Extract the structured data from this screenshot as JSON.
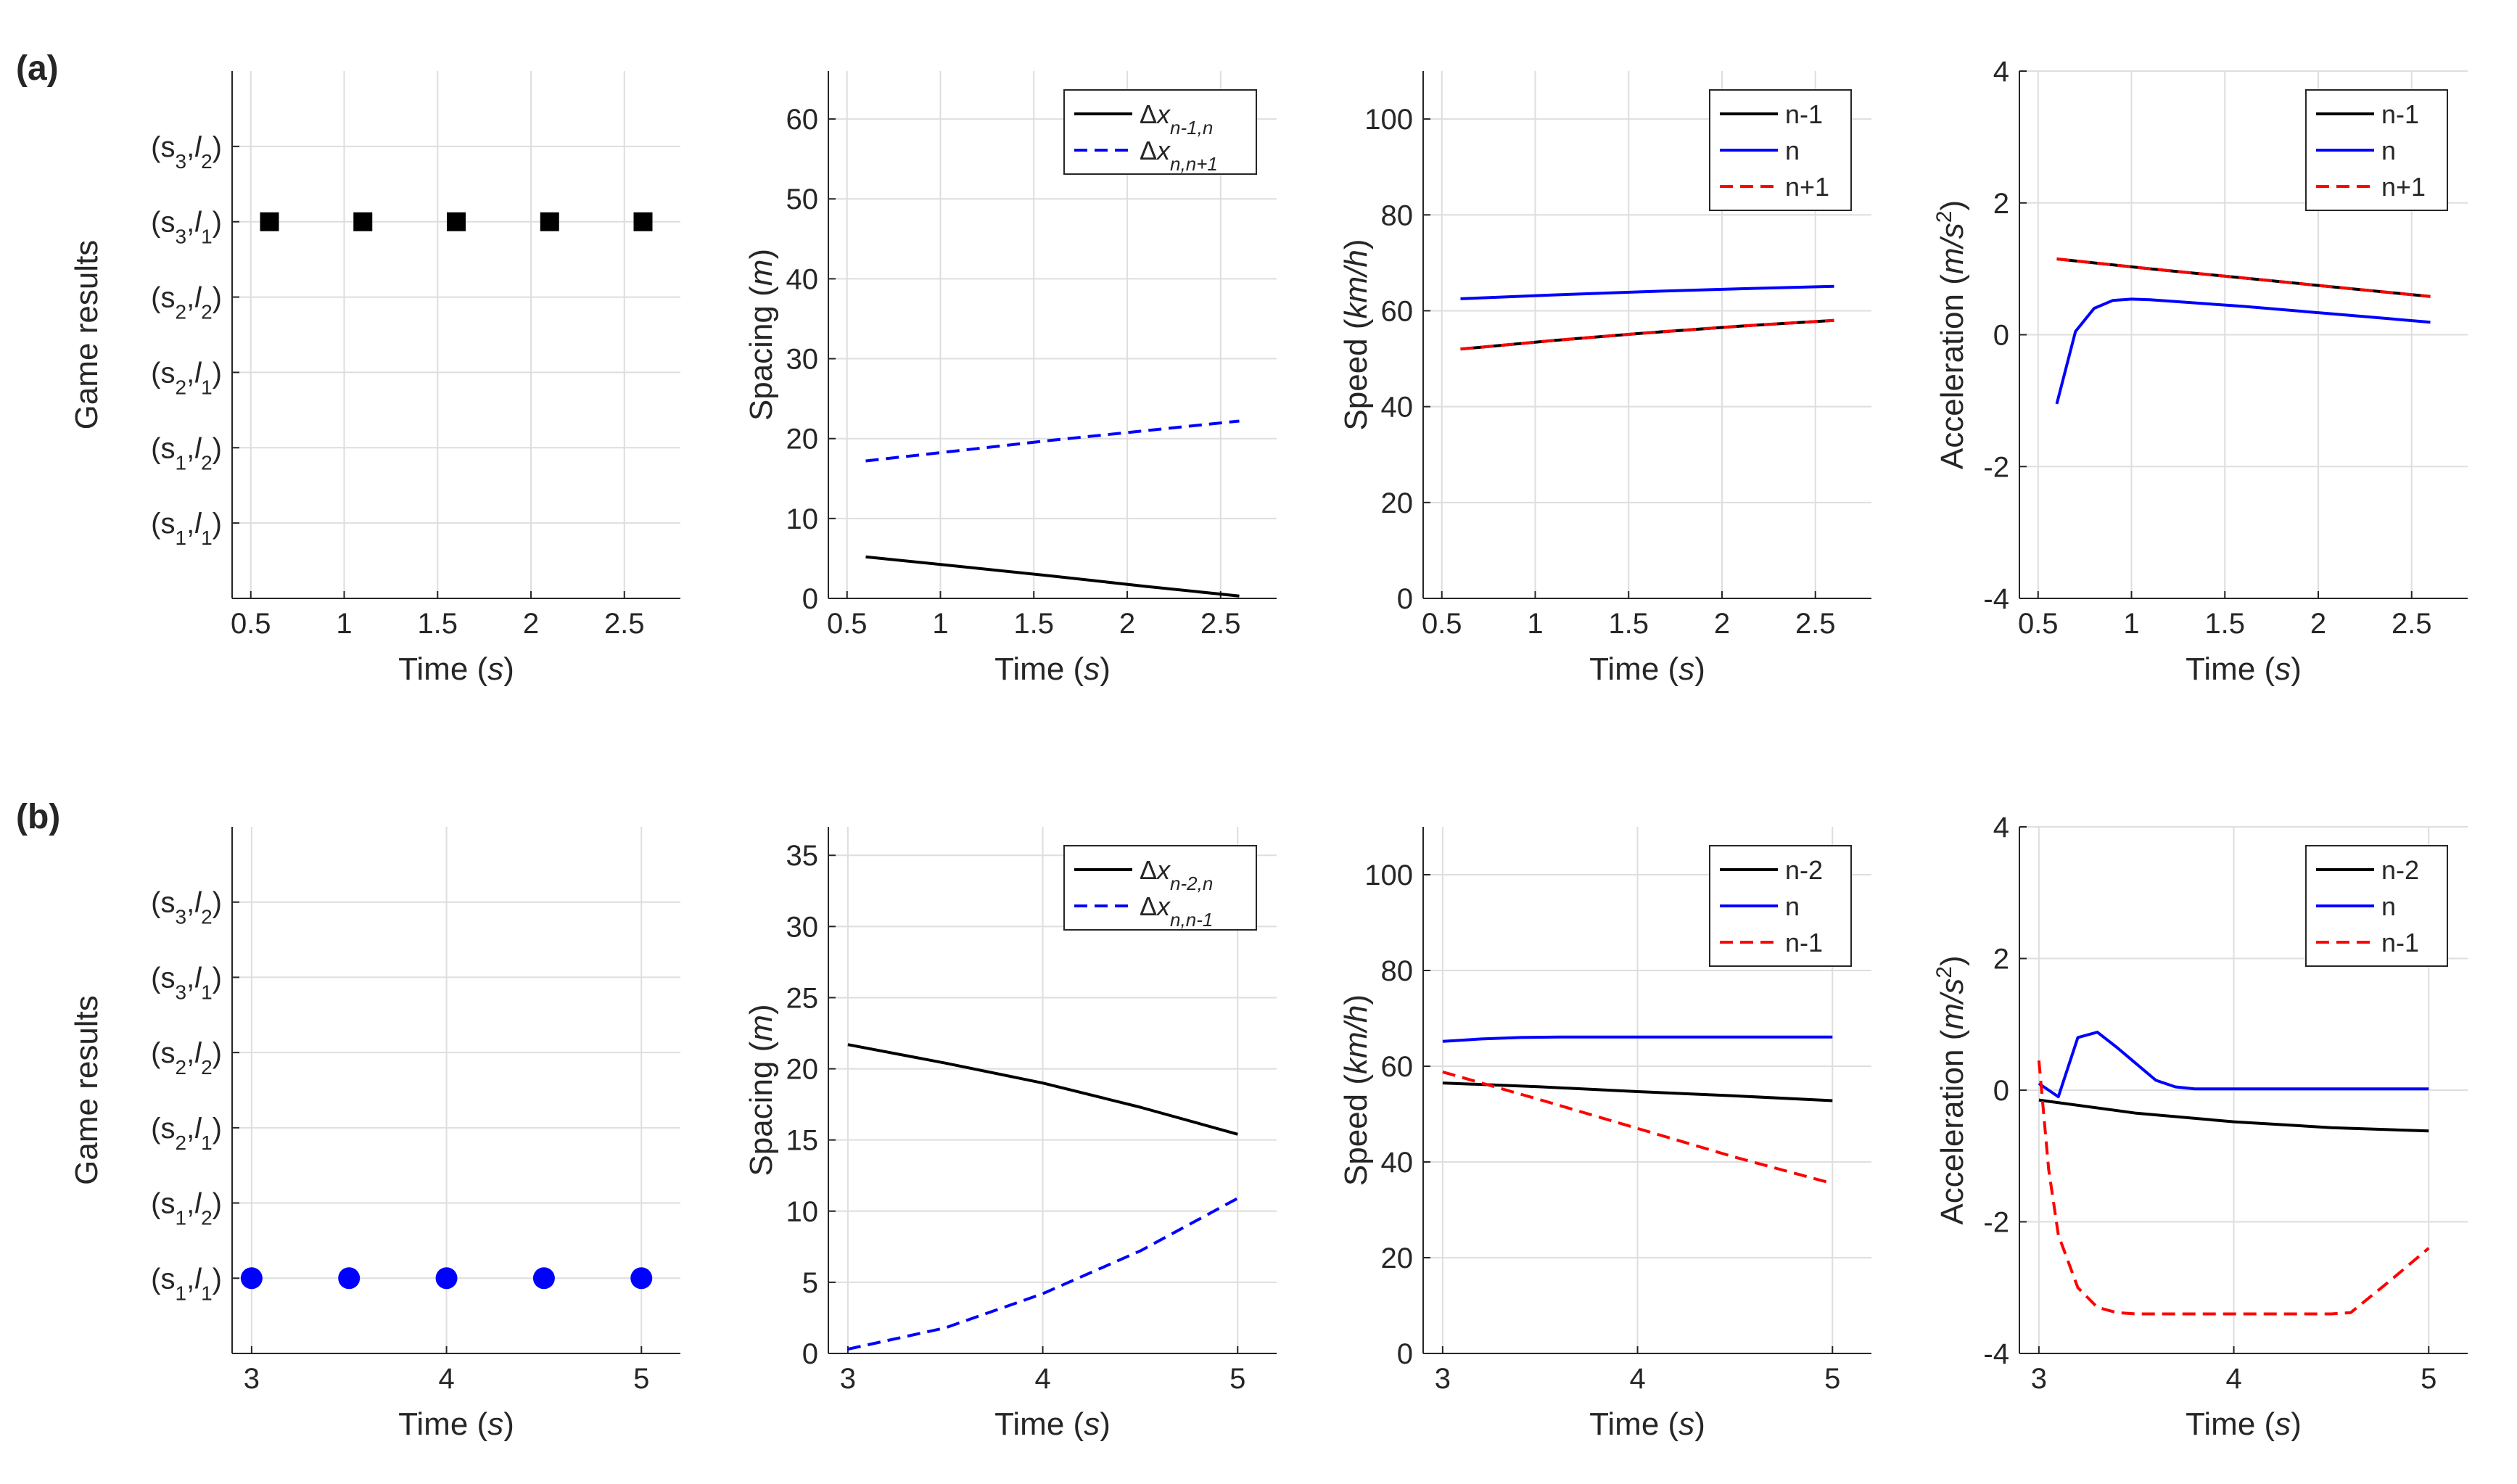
{
  "chart_data": [
    {
      "row": "(a)",
      "type": "scatter",
      "title": "",
      "xlabel": "Time",
      "xunit": "s",
      "ylabel": "Game results",
      "xlim": [
        0.4,
        2.8
      ],
      "xticks": [
        0.5,
        1,
        1.5,
        2,
        2.5
      ],
      "ylim": [
        0,
        7
      ],
      "ycategories": [
        {
          "s": "1",
          "l": "1"
        },
        {
          "s": "1",
          "l": "2"
        },
        {
          "s": "2",
          "l": "1"
        },
        {
          "s": "2",
          "l": "2"
        },
        {
          "s": "3",
          "l": "1"
        },
        {
          "s": "3",
          "l": "2"
        }
      ],
      "series": [
        {
          "name": "game result",
          "color": "#000000",
          "marker": "square",
          "x": [
            0.6,
            1.1,
            1.6,
            2.1,
            2.6
          ],
          "y": [
            5,
            5,
            5,
            5,
            5
          ]
        }
      ]
    },
    {
      "row": "(a)",
      "type": "line",
      "title": "",
      "xlabel": "Time",
      "xunit": "s",
      "ylabel": "Spacing",
      "yunit": "m",
      "xlim": [
        0.4,
        2.8
      ],
      "xticks": [
        0.5,
        1,
        1.5,
        2,
        2.5
      ],
      "ylim": [
        0,
        66
      ],
      "yticks": [
        0,
        10,
        20,
        30,
        40,
        50,
        60
      ],
      "legend_position": "top-right",
      "series": [
        {
          "name": "Δx",
          "sub": "n-1,n",
          "color": "#000000",
          "dash": "solid",
          "x": [
            0.6,
            1.1,
            1.6,
            2.1,
            2.6
          ],
          "y": [
            5.2,
            4.0,
            2.8,
            1.5,
            0.3
          ]
        },
        {
          "name": "Δx",
          "sub": "n,n+1",
          "color": "#0000ff",
          "dash": "dashed",
          "x": [
            0.6,
            1.1,
            1.6,
            2.1,
            2.6
          ],
          "y": [
            17.2,
            18.5,
            19.8,
            21.0,
            22.2
          ]
        }
      ]
    },
    {
      "row": "(a)",
      "type": "line",
      "title": "",
      "xlabel": "Time",
      "xunit": "s",
      "ylabel": "Speed",
      "yunit": "km/h",
      "xlim": [
        0.4,
        2.8
      ],
      "xticks": [
        0.5,
        1,
        1.5,
        2,
        2.5
      ],
      "ylim": [
        0,
        110
      ],
      "yticks": [
        0,
        20,
        40,
        60,
        80,
        100
      ],
      "legend_position": "top-right",
      "series": [
        {
          "name": "n-1",
          "color": "#000000",
          "dash": "solid",
          "x": [
            0.6,
            1.1,
            1.6,
            2.1,
            2.6
          ],
          "y": [
            52,
            53.8,
            55.4,
            56.8,
            58
          ]
        },
        {
          "name": "n",
          "color": "#0000ff",
          "dash": "solid",
          "x": [
            0.6,
            1.1,
            1.6,
            2.1,
            2.6
          ],
          "y": [
            62.5,
            63.3,
            64.0,
            64.6,
            65.1
          ]
        },
        {
          "name": "n+1",
          "color": "#ff0000",
          "dash": "dashed",
          "x": [
            0.6,
            1.1,
            1.6,
            2.1,
            2.6
          ],
          "y": [
            52,
            53.8,
            55.4,
            56.8,
            58
          ]
        }
      ]
    },
    {
      "row": "(a)",
      "type": "line",
      "title": "",
      "xlabel": "Time",
      "xunit": "s",
      "ylabel": "Acceleration",
      "yunit": "m/s",
      "xlim": [
        0.4,
        2.8
      ],
      "xticks": [
        0.5,
        1,
        1.5,
        2,
        2.5
      ],
      "ylim": [
        -4,
        4
      ],
      "yticks": [
        -4,
        -2,
        0,
        2,
        4
      ],
      "legend_position": "top-right",
      "series": [
        {
          "name": "n-1",
          "color": "#000000",
          "dash": "solid",
          "x": [
            0.6,
            1.1,
            1.6,
            2.1,
            2.6
          ],
          "y": [
            1.15,
            1.0,
            0.86,
            0.72,
            0.58
          ]
        },
        {
          "name": "n",
          "color": "#0000ff",
          "dash": "solid",
          "x": [
            0.6,
            0.7,
            0.8,
            0.9,
            1.0,
            1.1,
            1.6,
            2.1,
            2.6
          ],
          "y": [
            -1.05,
            0.05,
            0.4,
            0.52,
            0.54,
            0.53,
            0.43,
            0.31,
            0.19
          ]
        },
        {
          "name": "n+1",
          "color": "#ff0000",
          "dash": "dashed",
          "x": [
            0.6,
            1.1,
            1.6,
            2.1,
            2.6
          ],
          "y": [
            1.15,
            1.0,
            0.86,
            0.72,
            0.58
          ]
        }
      ]
    },
    {
      "row": "(b)",
      "type": "scatter",
      "title": "",
      "xlabel": "Time",
      "xunit": "s",
      "ylabel": "Game results",
      "xlim": [
        2.9,
        5.2
      ],
      "xticks": [
        3,
        4,
        5
      ],
      "ylim": [
        0,
        7
      ],
      "ycategories": [
        {
          "s": "1",
          "l": "1"
        },
        {
          "s": "1",
          "l": "2"
        },
        {
          "s": "2",
          "l": "1"
        },
        {
          "s": "2",
          "l": "2"
        },
        {
          "s": "3",
          "l": "1"
        },
        {
          "s": "3",
          "l": "2"
        }
      ],
      "series": [
        {
          "name": "game result",
          "color": "#0000ff",
          "marker": "circle",
          "x": [
            3,
            3.5,
            4,
            4.5,
            5
          ],
          "y": [
            1,
            1,
            1,
            1,
            1
          ]
        }
      ]
    },
    {
      "row": "(b)",
      "type": "line",
      "title": "",
      "xlabel": "Time",
      "xunit": "s",
      "ylabel": "Spacing",
      "yunit": "m",
      "xlim": [
        2.9,
        5.2
      ],
      "xticks": [
        3,
        4,
        5
      ],
      "ylim": [
        0,
        37
      ],
      "yticks": [
        0,
        5,
        10,
        15,
        20,
        25,
        30,
        35
      ],
      "legend_position": "top-right",
      "series": [
        {
          "name": "Δx",
          "sub": "n-2,n",
          "color": "#000000",
          "dash": "solid",
          "x": [
            3,
            3.5,
            4,
            4.5,
            5
          ],
          "y": [
            21.7,
            20.4,
            19.0,
            17.3,
            15.4
          ]
        },
        {
          "name": "Δx",
          "sub": "n,n-1",
          "color": "#0000ff",
          "dash": "dashed",
          "x": [
            3,
            3.5,
            4,
            4.5,
            5
          ],
          "y": [
            0.3,
            1.8,
            4.2,
            7.2,
            10.9
          ]
        }
      ]
    },
    {
      "row": "(b)",
      "type": "line",
      "title": "",
      "xlabel": "Time",
      "xunit": "s",
      "ylabel": "Speed",
      "yunit": "km/h",
      "xlim": [
        2.9,
        5.2
      ],
      "xticks": [
        3,
        4,
        5
      ],
      "ylim": [
        0,
        110
      ],
      "yticks": [
        0,
        20,
        40,
        60,
        80,
        100
      ],
      "legend_position": "top-right",
      "series": [
        {
          "name": "n-2",
          "color": "#000000",
          "dash": "solid",
          "x": [
            3,
            3.5,
            4,
            4.5,
            5
          ],
          "y": [
            56.5,
            55.7,
            54.7,
            53.8,
            52.8
          ]
        },
        {
          "name": "n",
          "color": "#0000ff",
          "dash": "solid",
          "x": [
            3,
            3.2,
            3.4,
            3.6,
            4,
            4.5,
            5
          ],
          "y": [
            65.2,
            65.7,
            66.0,
            66.1,
            66.1,
            66.1,
            66.1
          ]
        },
        {
          "name": "n-1",
          "color": "#ff0000",
          "dash": "dashed",
          "x": [
            3,
            3.5,
            4,
            4.5,
            5
          ],
          "y": [
            58.8,
            53.0,
            47.0,
            41.0,
            35.5
          ]
        }
      ]
    },
    {
      "row": "(b)",
      "type": "line",
      "title": "",
      "xlabel": "Time",
      "xunit": "s",
      "ylabel": "Acceleration",
      "yunit": "m/s",
      "xlim": [
        2.9,
        5.2
      ],
      "xticks": [
        3,
        4,
        5
      ],
      "ylim": [
        -4,
        4
      ],
      "yticks": [
        -4,
        -2,
        0,
        2,
        4
      ],
      "legend_position": "top-right",
      "series": [
        {
          "name": "n-2",
          "color": "#000000",
          "dash": "solid",
          "x": [
            3,
            3.5,
            4,
            4.5,
            5
          ],
          "y": [
            -0.15,
            -0.35,
            -0.48,
            -0.57,
            -0.62
          ]
        },
        {
          "name": "n",
          "color": "#0000ff",
          "dash": "solid",
          "x": [
            3,
            3.1,
            3.2,
            3.3,
            3.4,
            3.5,
            3.6,
            3.7,
            3.8,
            4,
            4.5,
            5
          ],
          "y": [
            0.1,
            -0.1,
            0.8,
            0.88,
            0.65,
            0.4,
            0.15,
            0.05,
            0.02,
            0.02,
            0.02,
            0.02
          ]
        },
        {
          "name": "n-1",
          "color": "#ff0000",
          "dash": "dashed",
          "x": [
            3,
            3.05,
            3.1,
            3.2,
            3.3,
            3.4,
            3.5,
            4,
            4.5,
            4.6,
            4.8,
            5
          ],
          "y": [
            0.45,
            -1.2,
            -2.2,
            -3.0,
            -3.3,
            -3.38,
            -3.4,
            -3.4,
            -3.4,
            -3.38,
            -2.9,
            -2.4
          ]
        }
      ]
    }
  ],
  "panel_labels": [
    "(a)",
    "(b)"
  ]
}
